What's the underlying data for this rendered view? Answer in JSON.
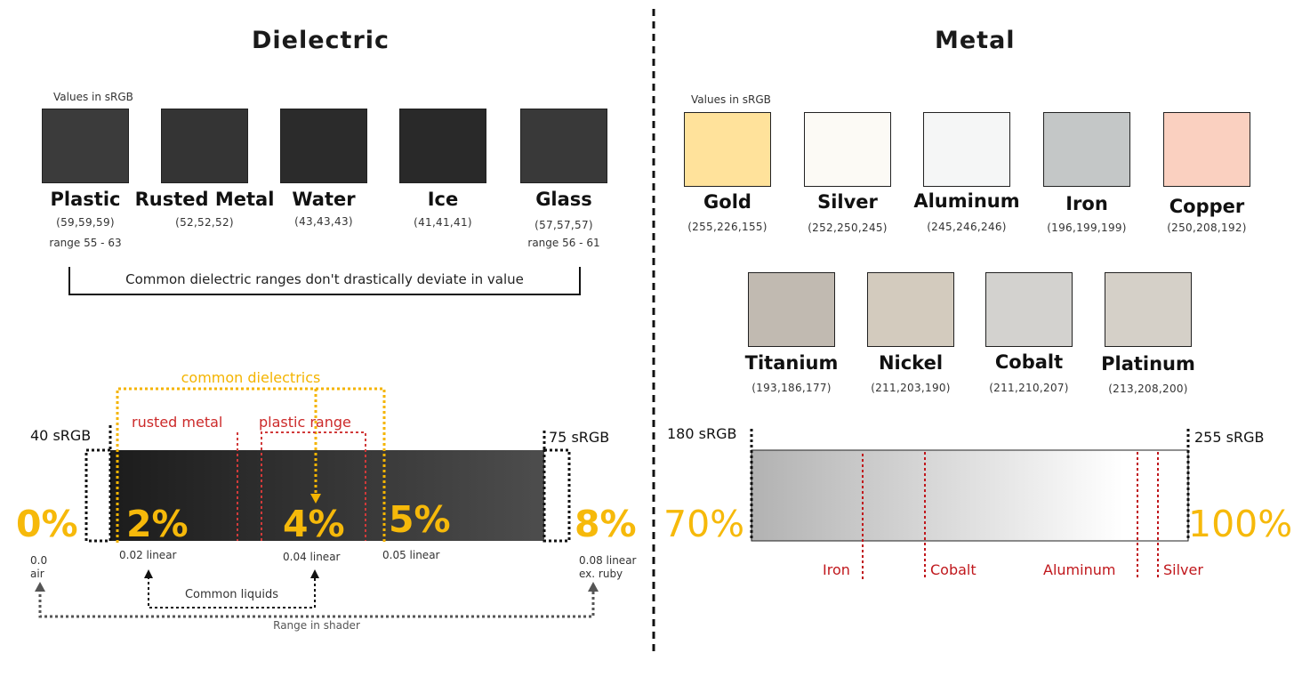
{
  "dielectric": {
    "title": "Dielectric",
    "values_note": "Values in sRGB",
    "materials": [
      {
        "name": "Plastic",
        "rgb": "(59,59,59)",
        "range": "range 55 - 63",
        "color": "#3b3b3b"
      },
      {
        "name": "Rusted Metal",
        "rgb": "(52,52,52)",
        "range": "",
        "color": "#343434"
      },
      {
        "name": "Water",
        "rgb": "(43,43,43)",
        "range": "",
        "color": "#2b2b2b"
      },
      {
        "name": "Ice",
        "rgb": "(41,41,41)",
        "range": "",
        "color": "#292929"
      },
      {
        "name": "Glass",
        "rgb": "(57,57,57)",
        "range": "range 56 - 61",
        "color": "#393939"
      }
    ],
    "bracket_note": "Common dielectric ranges don't drastically deviate in value",
    "scale": {
      "common_label": "common dielectrics",
      "rusted_label": "rusted metal",
      "plastic_label": "plastic range",
      "left_srgb": "40 sRGB",
      "right_srgb": "75 sRGB",
      "pct_0": "0%",
      "pct_2": "2%",
      "pct_4": "4%",
      "pct_5": "5%",
      "pct_8": "8%",
      "lin_0": "0.0",
      "lin_0_sub": "air",
      "lin_2": "0.02 linear",
      "lin_4": "0.04 linear",
      "lin_5": "0.05 linear",
      "lin_8": "0.08 linear",
      "lin_8_sub": "ex. ruby",
      "liquids_label": "Common liquids",
      "shader_label": "Range in shader"
    }
  },
  "metal": {
    "title": "Metal",
    "values_note": "Values in sRGB",
    "row1": [
      {
        "name": "Gold",
        "rgb": "(255,226,155)",
        "color": "#ffe29b"
      },
      {
        "name": "Silver",
        "rgb": "(252,250,245)",
        "color": "#fcfaf5"
      },
      {
        "name": "Aluminum",
        "rgb": "(245,246,246)",
        "color": "#f5f6f6"
      },
      {
        "name": "Iron",
        "rgb": "(196,199,199)",
        "color": "#c4c7c7"
      },
      {
        "name": "Copper",
        "rgb": "(250,208,192)",
        "color": "#fad0c0"
      }
    ],
    "row2": [
      {
        "name": "Titanium",
        "rgb": "(193,186,177)",
        "color": "#c1bab1"
      },
      {
        "name": "Nickel",
        "rgb": "(211,203,190)",
        "color": "#d3cbbe"
      },
      {
        "name": "Cobalt",
        "rgb": "(211,210,207)",
        "color": "#d3d2cf"
      },
      {
        "name": "Platinum",
        "rgb": "(213,208,200)",
        "color": "#d5d0c8"
      }
    ],
    "scale": {
      "left_srgb": "180 sRGB",
      "right_srgb": "255 sRGB",
      "pct_left": "70%",
      "pct_right": "100%",
      "markers": [
        "Iron",
        "Cobalt",
        "Aluminum",
        "Silver"
      ]
    }
  }
}
